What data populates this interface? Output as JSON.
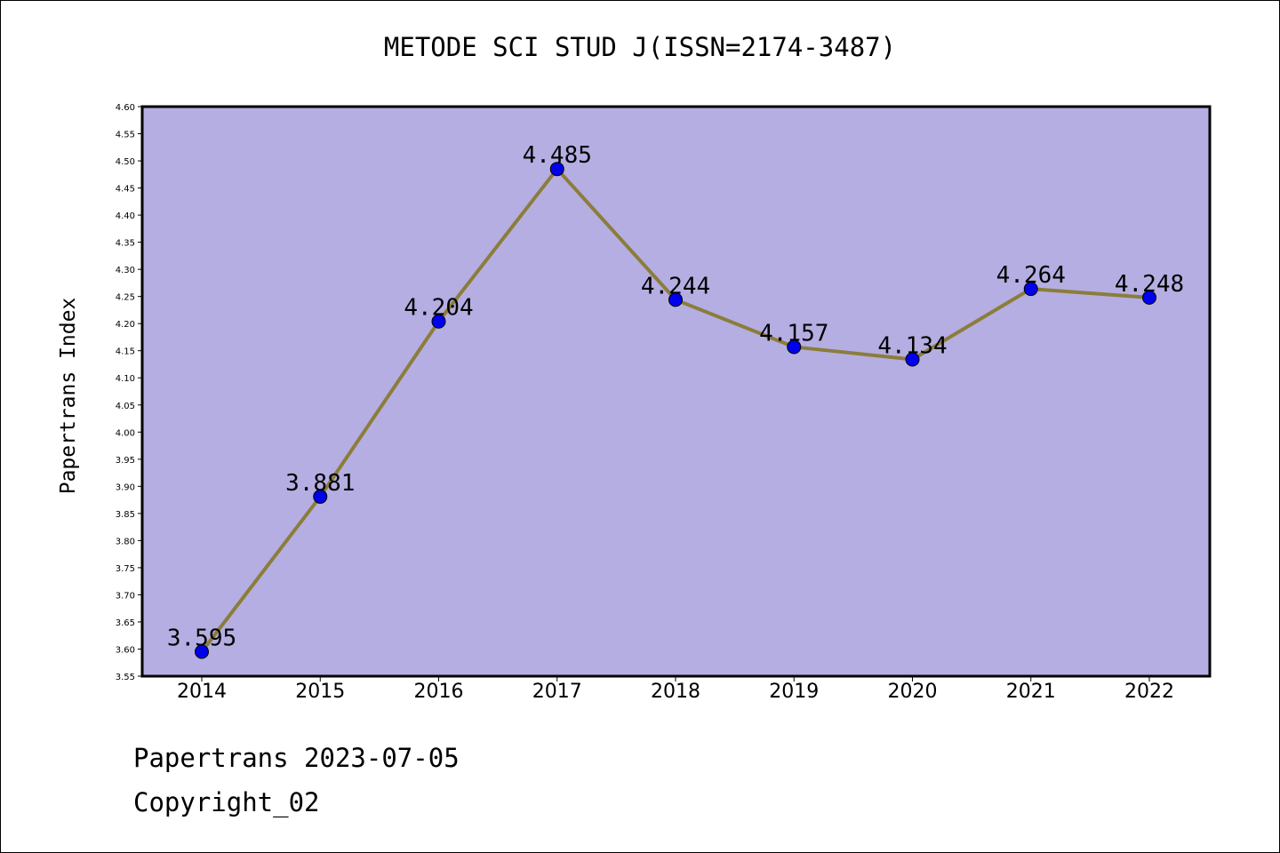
{
  "chart_data": {
    "type": "line",
    "title": "METODE SCI STUD J(ISSN=2174-3487)",
    "xlabel": "",
    "ylabel": "Papertrans Index",
    "categories": [
      "2014",
      "2015",
      "2016",
      "2017",
      "2018",
      "2019",
      "2020",
      "2021",
      "2022"
    ],
    "values": [
      3.595,
      3.881,
      4.204,
      4.485,
      4.244,
      4.157,
      4.134,
      4.264,
      4.248
    ],
    "data_labels": [
      "3.595",
      "3.881",
      "4.204",
      "4.485",
      "4.244",
      "4.157",
      "4.134",
      "4.264",
      "4.248"
    ],
    "ylim": [
      3.55,
      4.6
    ],
    "y_ticks": [
      "3.55",
      "3.60",
      "3.65",
      "3.70",
      "3.75",
      "3.80",
      "3.85",
      "3.90",
      "3.95",
      "4.00",
      "4.05",
      "4.10",
      "4.15",
      "4.20",
      "4.25",
      "4.30",
      "4.35",
      "4.40",
      "4.45",
      "4.50",
      "4.55",
      "4.60"
    ],
    "grid": false,
    "legend": "none",
    "colors": {
      "plot_background": "#b5aee2",
      "line": "#8b7d3a",
      "marker": "#0000ee"
    }
  },
  "footer": {
    "date_line": "Papertrans 2023-07-05",
    "copyright": "Copyright_02"
  }
}
